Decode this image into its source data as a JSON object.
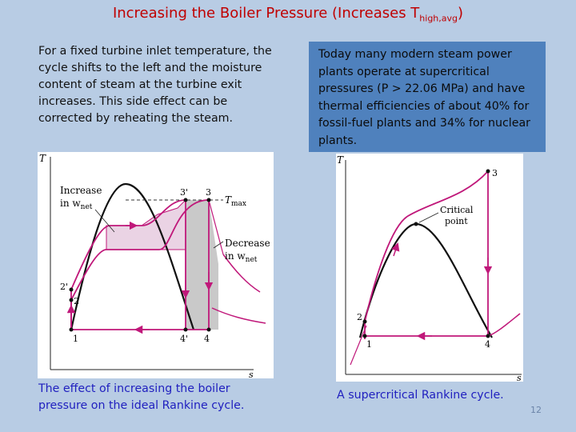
{
  "title": {
    "main": "Increasing the Boiler Pressure (Increases T",
    "sub": "high,avg",
    "close": ")"
  },
  "left_text": "For a fixed turbine inlet temperature, the cycle shifts to the left and the moisture content of steam at the turbine exit increases. This side effect can be corrected by reheating the steam.",
  "right_text": "Today many modern steam power plants operate at supercritical pressures (P > 22.06 MPa) and have thermal efficiencies of about 40% for fossil-fuel plants and 34% for nuclear plants.",
  "left_caption": "The effect of increasing the boiler pressure on the ideal Rankine cycle.",
  "right_caption": "A supercritical Rankine cycle.",
  "slide_number": "12",
  "left_figure": {
    "axis_t": "T",
    "axis_s": "s",
    "label_increase": "Increase",
    "label_in_wnet": "in w",
    "label_decrease": "Decrease",
    "label_in_wnet2": "in w",
    "net_sub": "net",
    "tmax": "T",
    "tmax_sub": "max",
    "points": {
      "p1": "1",
      "p2": "2",
      "p2p": "2'",
      "p3": "3",
      "p3p": "3'",
      "p4": "4",
      "p4p": "4'"
    }
  },
  "right_figure": {
    "axis_t": "T",
    "axis_s": "s",
    "critical_1": "Critical",
    "critical_2": "point",
    "points": {
      "p1": "1",
      "p2": "2",
      "p3": "3",
      "p4": "4"
    }
  }
}
